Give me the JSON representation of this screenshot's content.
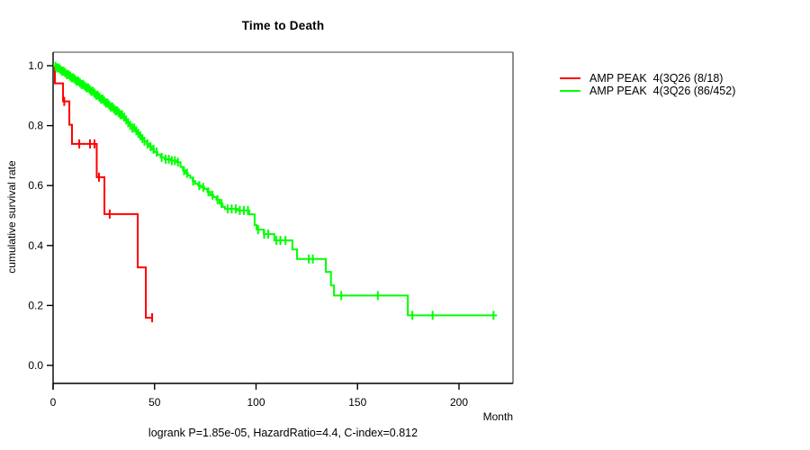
{
  "title": "Time to Death",
  "footer": "logrank P=1.85e-05, HazardRatio=4.4, C-index=0.812",
  "axes": {
    "xlabel": "Month",
    "ylabel": "cumulative survival rate",
    "x_ticks": [
      {
        "label": "0",
        "value": 0
      },
      {
        "label": "50",
        "value": 50
      },
      {
        "label": "100",
        "value": 100
      },
      {
        "label": "150",
        "value": 150
      },
      {
        "label": "200",
        "value": 200
      }
    ],
    "y_ticks": [
      {
        "label": "0.0",
        "value": 0.0
      },
      {
        "label": "0.2",
        "value": 0.2
      },
      {
        "label": "0.4",
        "value": 0.4
      },
      {
        "label": "0.6",
        "value": 0.6
      },
      {
        "label": "0.8",
        "value": 0.8
      },
      {
        "label": "1.0",
        "value": 1.0
      }
    ]
  },
  "chart_data": {
    "type": "line",
    "subtype": "kaplan-meier-step",
    "title": "Time to Death",
    "xlabel": "Month",
    "ylabel": "cumulative survival rate",
    "xlim": [
      0,
      226
    ],
    "ylim": [
      0,
      1.04
    ],
    "grid": false,
    "legend_position": "right-outside",
    "series": [
      {
        "name": "AMP PEAK  4(3Q26 (8/18)",
        "color": "#ff0000",
        "events": "8/18",
        "end_time": 49.2,
        "steps": [
          [
            0,
            1.0
          ],
          [
            0.9,
            0.941
          ],
          [
            4.9,
            0.881
          ],
          [
            8.0,
            0.803
          ],
          [
            9.3,
            0.739
          ],
          [
            21.5,
            0.628
          ],
          [
            25.3,
            0.505
          ],
          [
            41.7,
            0.327
          ],
          [
            45.7,
            0.159
          ]
        ],
        "censor_times": [
          5.5,
          12.9,
          18.2,
          20.4,
          22.6,
          27.9,
          48.8
        ]
      },
      {
        "name": "AMP PEAK  4(3Q26 (86/452)",
        "color": "#00ff00",
        "events": "86/452",
        "end_time": 218.7,
        "steps": [
          [
            0,
            1.0
          ],
          [
            1,
            0.998
          ],
          [
            2,
            0.9925
          ],
          [
            3.2,
            0.987
          ],
          [
            4.4,
            0.9815
          ],
          [
            5.6,
            0.976
          ],
          [
            6.8,
            0.9705
          ],
          [
            8,
            0.965
          ],
          [
            9.2,
            0.9595
          ],
          [
            10.4,
            0.954
          ],
          [
            11.6,
            0.9485
          ],
          [
            12.8,
            0.943
          ],
          [
            14,
            0.9375
          ],
          [
            15.2,
            0.932
          ],
          [
            16.4,
            0.9265
          ],
          [
            17.6,
            0.921
          ],
          [
            18.8,
            0.9145
          ],
          [
            20,
            0.908
          ],
          [
            21.2,
            0.9015
          ],
          [
            22.4,
            0.895
          ],
          [
            23.6,
            0.8885
          ],
          [
            24.8,
            0.882
          ],
          [
            26,
            0.8755
          ],
          [
            27.2,
            0.869
          ],
          [
            28.4,
            0.8625
          ],
          [
            29.6,
            0.856
          ],
          [
            30.8,
            0.8495
          ],
          [
            32,
            0.843
          ],
          [
            33.2,
            0.8365
          ],
          [
            34.2,
            0.828
          ],
          [
            35.4,
            0.819
          ],
          [
            36.6,
            0.81
          ],
          [
            37.8,
            0.801
          ],
          [
            39,
            0.792
          ],
          [
            40.2,
            0.783
          ],
          [
            41.4,
            0.774
          ],
          [
            42.6,
            0.766
          ],
          [
            43.8,
            0.757
          ],
          [
            45,
            0.748
          ],
          [
            46.2,
            0.739
          ],
          [
            47.4,
            0.73
          ],
          [
            48.6,
            0.721
          ],
          [
            49.8,
            0.712
          ],
          [
            51.4,
            0.703
          ],
          [
            53,
            0.694
          ],
          [
            55,
            0.688
          ],
          [
            58,
            0.683
          ],
          [
            61,
            0.678
          ],
          [
            62.8,
            0.662
          ],
          [
            64,
            0.65
          ],
          [
            65.2,
            0.641
          ],
          [
            66.4,
            0.634
          ],
          [
            67.6,
            0.626
          ],
          [
            68.8,
            0.615
          ],
          [
            70,
            0.606
          ],
          [
            71.5,
            0.6
          ],
          [
            73,
            0.594
          ],
          [
            74.5,
            0.589
          ],
          [
            76,
            0.579
          ],
          [
            77.5,
            0.568
          ],
          [
            79,
            0.562
          ],
          [
            80.5,
            0.553
          ],
          [
            82,
            0.54
          ],
          [
            83.5,
            0.529
          ],
          [
            84.7,
            0.522
          ],
          [
            91,
            0.517
          ],
          [
            96.7,
            0.504
          ],
          [
            99.3,
            0.468
          ],
          [
            100.3,
            0.453
          ],
          [
            103.8,
            0.438
          ],
          [
            109,
            0.417
          ],
          [
            117.9,
            0.387
          ],
          [
            120.2,
            0.355
          ],
          [
            134.4,
            0.312
          ],
          [
            136.9,
            0.267
          ],
          [
            138.4,
            0.233
          ],
          [
            174.8,
            0.167
          ]
        ],
        "censor_times": [
          1.2,
          2,
          2.8,
          3.6,
          4.4,
          5.2,
          6,
          6.8,
          7.6,
          8.4,
          9.2,
          10,
          10.8,
          11.6,
          12.4,
          13.2,
          14,
          14.8,
          15.6,
          16.4,
          17.2,
          18,
          18.8,
          19.6,
          20.4,
          21.2,
          22,
          22.8,
          23.6,
          24.4,
          25.2,
          26,
          26.8,
          27.6,
          28.4,
          29.2,
          30,
          30.8,
          31.6,
          32.4,
          33.2,
          34,
          35,
          36,
          37,
          38,
          39,
          40,
          41,
          42,
          43,
          44,
          45,
          46.5,
          48,
          49.5,
          51,
          53.5,
          55.5,
          57,
          58.5,
          60,
          61.5,
          64.5,
          66,
          69,
          72,
          74,
          76.5,
          78.5,
          81,
          83,
          86,
          88,
          90,
          92,
          94,
          96,
          101,
          104,
          106,
          110,
          112,
          114.5,
          126,
          128,
          142,
          160,
          177,
          187,
          217
        ]
      }
    ]
  },
  "legend": {
    "entries": [
      {
        "label": "AMP PEAK  4(3Q26 (8/18)",
        "color": "#ff0000"
      },
      {
        "label": "AMP PEAK  4(3Q26 (86/452)",
        "color": "#00ff00"
      }
    ]
  },
  "frame_colors": {
    "box_top": "#808080",
    "box_right": "#5e5e5e",
    "axis": "#000000"
  }
}
